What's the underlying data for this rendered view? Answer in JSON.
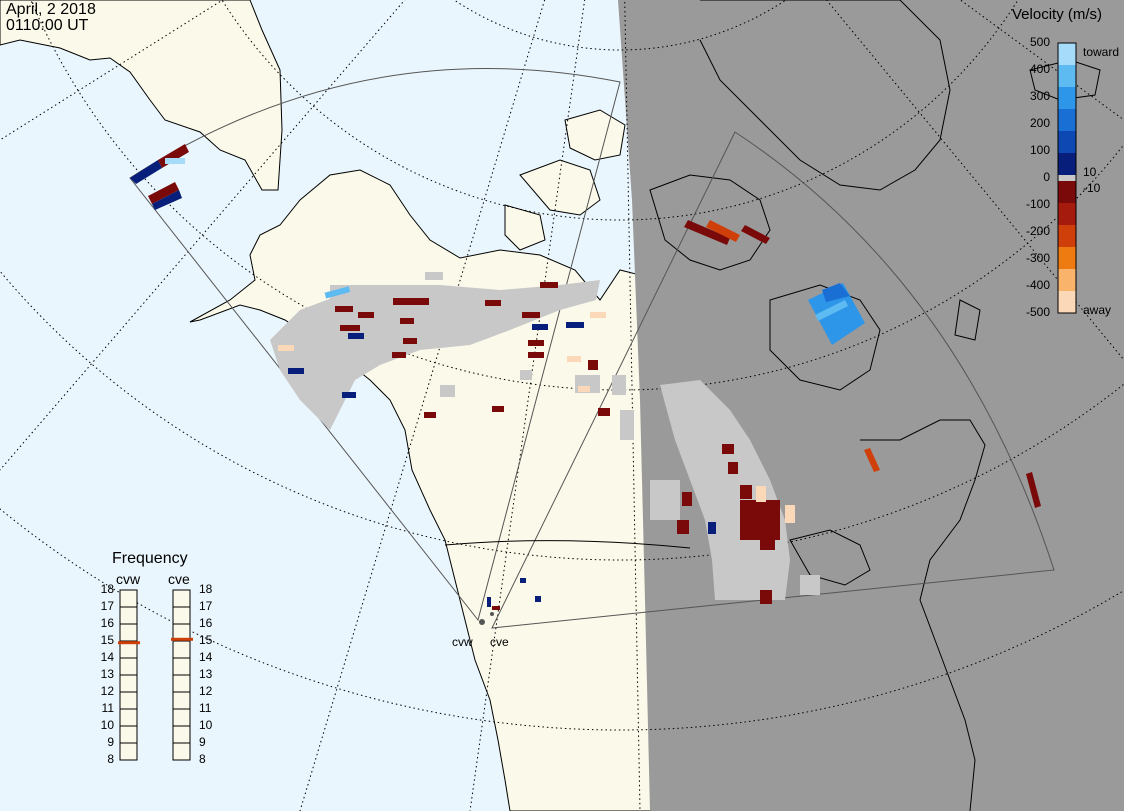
{
  "header": {
    "date": "April, 2 2018",
    "time": "0110:00 UT"
  },
  "colors": {
    "ocean": "#eaf6fd",
    "land": "#fbf9e9",
    "night": "#9a9a9a",
    "ground_scatter": "#c8c8c8",
    "coast": "#000000",
    "grid": "#000000"
  },
  "velocity_scale": {
    "title": "Velocity (m/s)",
    "toward_label": "toward",
    "away_label": "away",
    "ticks": [
      "500",
      "400",
      "300",
      "200",
      "100",
      "0",
      "-100",
      "-200",
      "-300",
      "-400",
      "-500"
    ],
    "inner_ticks": [
      "10",
      "-10"
    ],
    "colors": [
      "#a6dcf9",
      "#5ebbf2",
      "#2e96e8",
      "#1a6fd4",
      "#0d48b3",
      "#071e7a",
      "#7a0a0a",
      "#a51c0e",
      "#cf3f09",
      "#ee7a12",
      "#f9b36a",
      "#fbd9b8"
    ]
  },
  "radars": [
    {
      "name": "cvw",
      "frequency_mhz": 14.9
    },
    {
      "name": "cve",
      "frequency_mhz": 15.1
    }
  ],
  "frequency_panel": {
    "title": "Frequency",
    "ticks": [
      "18",
      "17",
      "16",
      "15",
      "14",
      "13",
      "12",
      "11",
      "10",
      "9",
      "8"
    ]
  }
}
